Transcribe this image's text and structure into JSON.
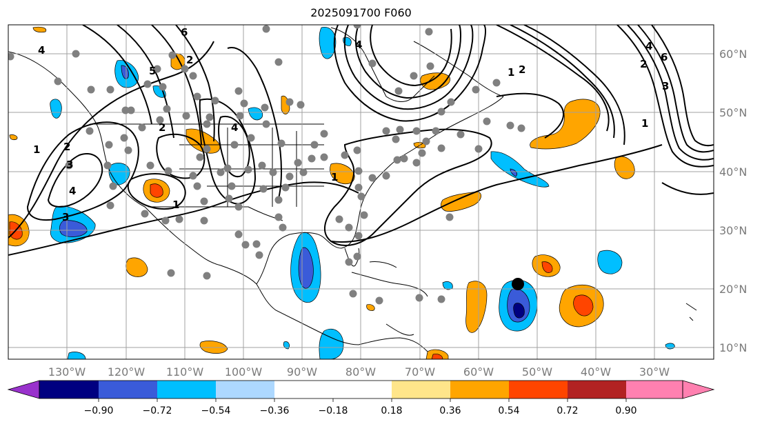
{
  "title": "2025091700 F060",
  "lon_labels": [
    "130°W",
    "120°W",
    "110°W",
    "100°W",
    "90°W",
    "80°W",
    "70°W",
    "60°W",
    "50°W",
    "40°W",
    "30°W"
  ],
  "lat_labels": [
    "60°N",
    "50°N",
    "40°N",
    "30°N",
    "20°N",
    "10°N"
  ],
  "colorbar": {
    "ticks": [
      "−0.90",
      "−0.72",
      "−0.54",
      "−0.36",
      "−0.18",
      "0.18",
      "0.36",
      "0.54",
      "0.72",
      "0.90"
    ],
    "colors": [
      "#9932cc",
      "#000080",
      "#3a5bd9",
      "#00bfff",
      "#add8ff",
      "#ffffff",
      "#ffe58a",
      "#ffa500",
      "#ff4500",
      "#b22222",
      "#ff80b0"
    ]
  },
  "contour_labels": [
    "4",
    "6",
    "2",
    "1",
    "2",
    "3",
    "4",
    "1",
    "2",
    "4",
    "1",
    "6",
    "2",
    "3",
    "4",
    "1",
    "2",
    "4",
    "5",
    "1",
    "3"
  ],
  "colors": {
    "contour": "#000000",
    "station": "#808080",
    "storm": "#000000",
    "grid": "#a0a0a0"
  }
}
